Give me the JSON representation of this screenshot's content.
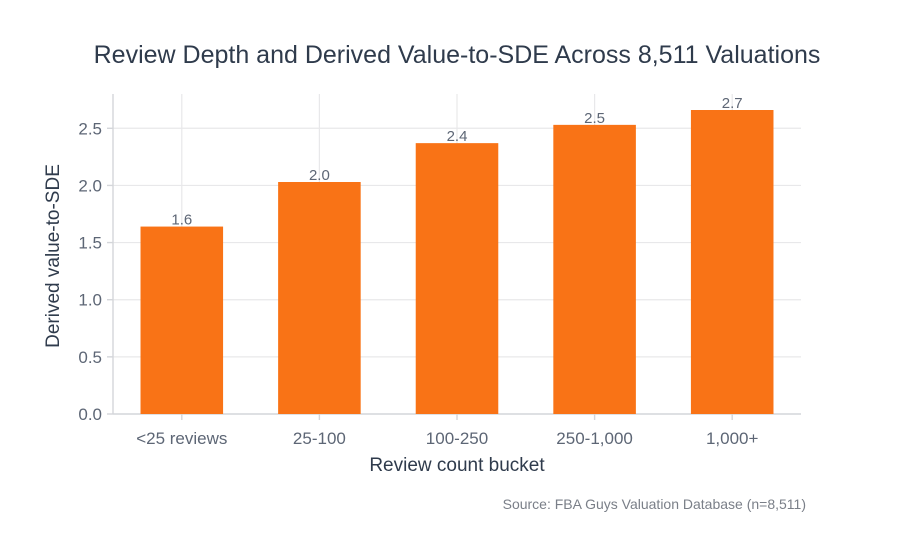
{
  "chart_data": {
    "type": "bar",
    "title": "Review Depth and Derived Value-to-SDE Across 8,511 Valuations",
    "xlabel": "Review count bucket",
    "ylabel": "Derived value-to-SDE",
    "categories": [
      "<25 reviews",
      "25-100",
      "100-250",
      "250-1,000",
      "1,000+"
    ],
    "values": [
      1.64,
      2.03,
      2.37,
      2.53,
      2.66
    ],
    "data_labels": [
      "1.6",
      "2.0",
      "2.4",
      "2.5",
      "2.7"
    ],
    "ylim": [
      0,
      2.8
    ],
    "yticks": [
      0.0,
      0.5,
      1.0,
      1.5,
      2.0,
      2.5
    ],
    "ytick_labels": [
      "0.0",
      "0.5",
      "1.0",
      "1.5",
      "2.0",
      "2.5"
    ],
    "grid": true,
    "bar_color": "#f97316",
    "source": "Source: FBA Guys Valuation Database (n=8,511)"
  }
}
